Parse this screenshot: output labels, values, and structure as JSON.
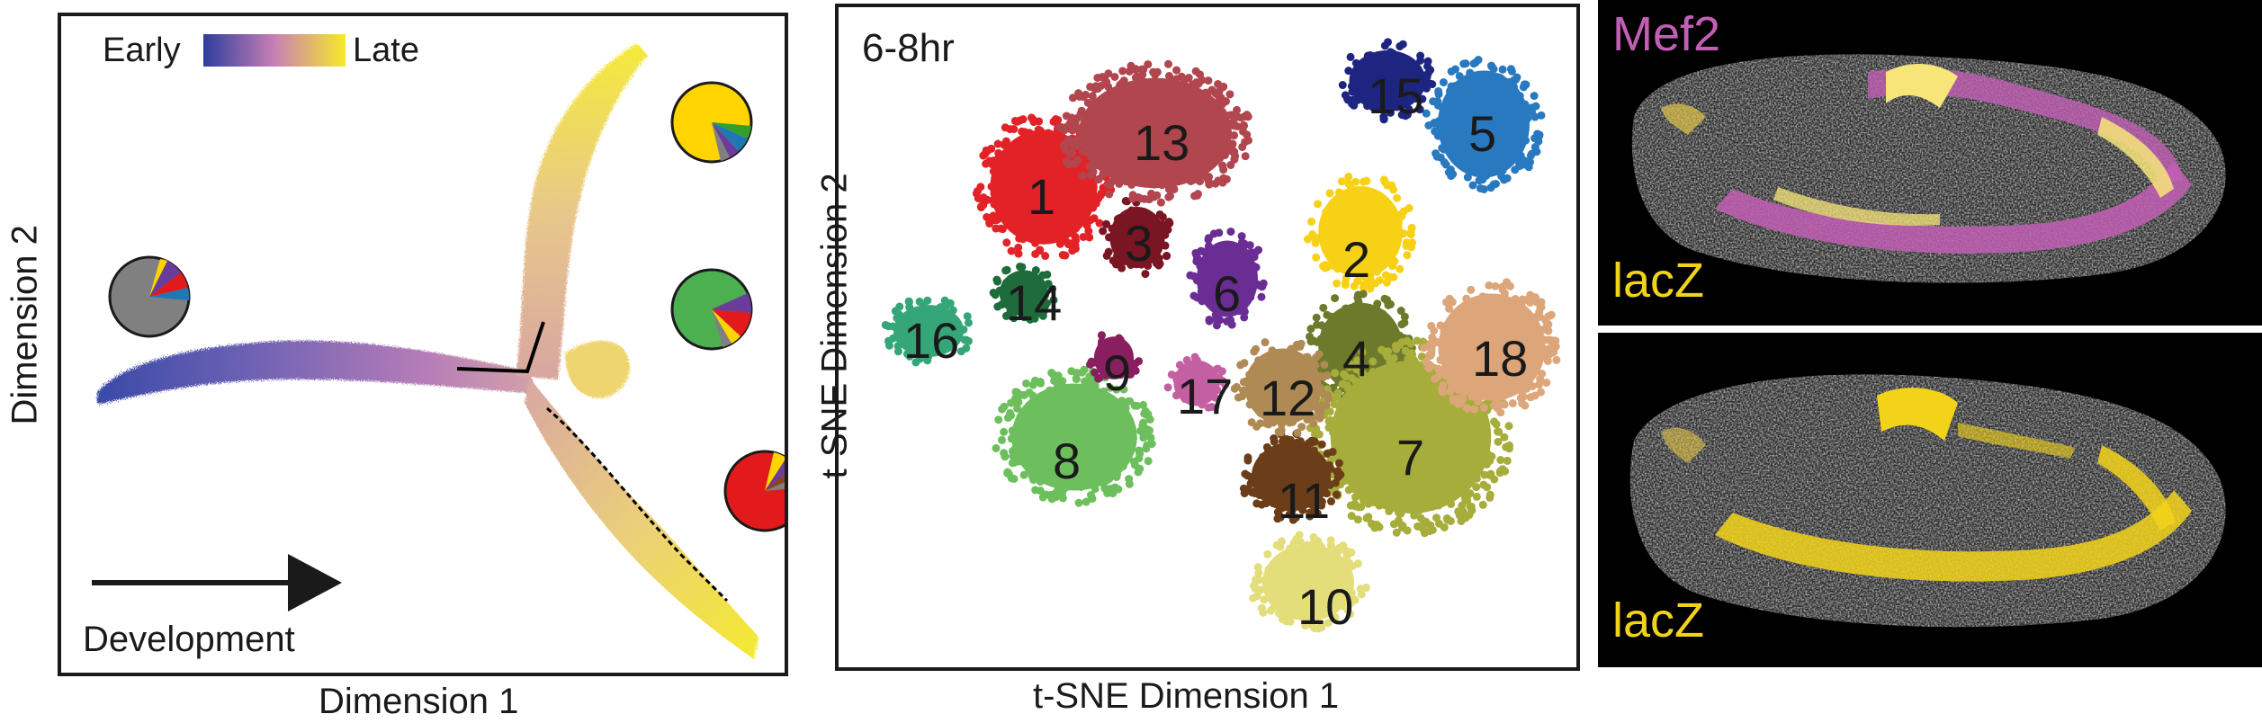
{
  "panel_a": {
    "legend_early": "Early",
    "legend_late": "Late",
    "xlabel": "Dimension 1",
    "ylabel": "Dimension 2",
    "arrow_label": "Development",
    "colors": {
      "early": "#2e3c9e",
      "mid": "#c880b4",
      "late": "#f6ea2a"
    },
    "pies": [
      {
        "fill": "#808080",
        "slices": [
          "#6a3d9a",
          "#e31a1c",
          "#ffd400"
        ]
      },
      {
        "fill": "#ffd400",
        "slices": [
          "#33a02c",
          "#1f78b4",
          "#6a3d9a"
        ]
      },
      {
        "fill": "#4caf50",
        "slices": [
          "#e31a1c",
          "#ffd400",
          "#6a3d9a"
        ]
      },
      {
        "fill": "#e31a1c",
        "slices": [
          "#ffd400",
          "#6a3d9a",
          "#8b4513"
        ]
      }
    ]
  },
  "panel_b": {
    "title": "6-8hr",
    "xlabel": "t-SNE Dimension 1",
    "ylabel": "t-SNE Dimension 2",
    "clusters": [
      {
        "label": "1",
        "color": "#e32228"
      },
      {
        "label": "2",
        "color": "#f7d116"
      },
      {
        "label": "3",
        "color": "#7a1523"
      },
      {
        "label": "4",
        "color": "#6d7a2b"
      },
      {
        "label": "5",
        "color": "#2979c0"
      },
      {
        "label": "6",
        "color": "#6a2d93"
      },
      {
        "label": "7",
        "color": "#a6ad3a"
      },
      {
        "label": "8",
        "color": "#6cbf5c"
      },
      {
        "label": "9",
        "color": "#8a1f5f"
      },
      {
        "label": "10",
        "color": "#e3dd7a"
      },
      {
        "label": "11",
        "color": "#6b3d18"
      },
      {
        "label": "12",
        "color": "#b08a55"
      },
      {
        "label": "13",
        "color": "#b1464f"
      },
      {
        "label": "14",
        "color": "#1e6b3c"
      },
      {
        "label": "15",
        "color": "#1e2580"
      },
      {
        "label": "16",
        "color": "#35a678"
      },
      {
        "label": "17",
        "color": "#c45fa2"
      },
      {
        "label": "18",
        "color": "#dca67a"
      }
    ]
  },
  "panel_c": {
    "top_label_1": "Mef2",
    "top_label_2": "lacZ",
    "bottom_label": "lacZ",
    "colors": {
      "mef2": "#c25fb5",
      "lacz": "#f2d31a"
    }
  }
}
